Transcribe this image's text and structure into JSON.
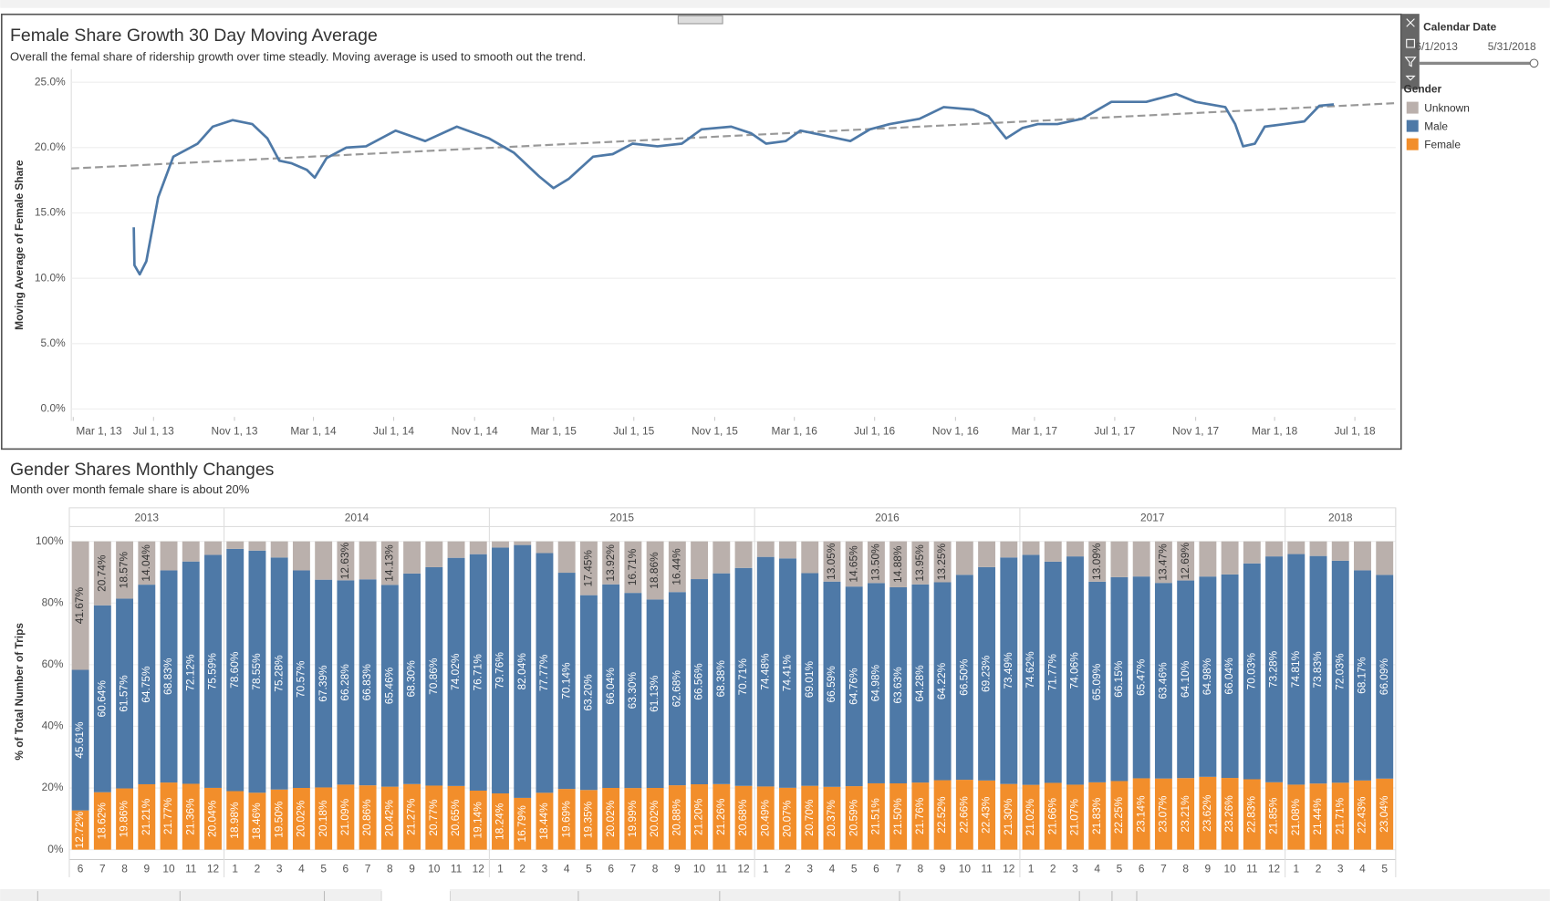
{
  "chart_data": [
    {
      "type": "line",
      "title": "Female Share Growth 30 Day Moving Average",
      "subtitle": "Overall the femal share of ridership growth over time steadly. Moving average is used to smooth out the trend.",
      "y_label": "Moving Average of Female Share",
      "color": "#4e79a7",
      "x": [
        "2013-06-01",
        "2013-06-02",
        "2013-06-10",
        "2013-06-20",
        "2013-07-08",
        "2013-07-31",
        "2013-09-06",
        "2013-09-29",
        "2013-10-29",
        "2013-11-28",
        "2013-12-21",
        "2014-01-08",
        "2014-01-27",
        "2014-02-19",
        "2014-03-03",
        "2014-03-21",
        "2014-04-20",
        "2014-05-20",
        "2014-07-04",
        "2014-08-18",
        "2014-10-05",
        "2014-11-23",
        "2014-12-31",
        "2015-02-07",
        "2015-03-01",
        "2015-03-24",
        "2015-04-30",
        "2015-05-30",
        "2015-06-29",
        "2015-08-06",
        "2015-09-12",
        "2015-10-12",
        "2015-11-26",
        "2015-12-26",
        "2016-01-18",
        "2016-02-17",
        "2016-03-10",
        "2016-04-09",
        "2016-05-25",
        "2016-06-24",
        "2016-07-24",
        "2016-09-07",
        "2016-10-14",
        "2016-11-28",
        "2016-12-21",
        "2017-01-17",
        "2017-02-11",
        "2017-03-06",
        "2017-04-05",
        "2017-05-12",
        "2017-06-26",
        "2017-08-18",
        "2017-10-02",
        "2017-11-01",
        "2017-12-16",
        "2017-12-31",
        "2018-01-12",
        "2018-01-30",
        "2018-02-14",
        "2018-03-16",
        "2018-04-15",
        "2018-05-08",
        "2018-05-30"
      ],
      "values": [
        13.9,
        11.0,
        10.3,
        11.3,
        16.2,
        19.3,
        20.3,
        21.6,
        22.1,
        21.8,
        20.7,
        19.0,
        18.8,
        18.3,
        17.7,
        19.2,
        20.0,
        20.1,
        21.3,
        20.5,
        21.6,
        20.7,
        19.6,
        17.8,
        16.9,
        17.6,
        19.3,
        19.5,
        20.3,
        20.1,
        20.3,
        21.4,
        21.6,
        21.1,
        20.3,
        20.5,
        21.3,
        21.0,
        20.5,
        21.4,
        21.8,
        22.2,
        23.1,
        22.9,
        22.4,
        20.7,
        21.5,
        21.8,
        21.8,
        22.2,
        23.5,
        23.5,
        24.1,
        23.5,
        23.1,
        21.8,
        20.1,
        20.3,
        21.6,
        21.8,
        22.0,
        23.2,
        23.3
      ],
      "trend_line": {
        "x": [
          "2013-02-26",
          "2018-09-01"
        ],
        "values": [
          18.4,
          23.4
        ],
        "color": "#999999"
      },
      "xlim": [
        "2013-02-26",
        "2018-09-01"
      ],
      "xticks": [
        {
          "value": "2013-03-01",
          "label": "Mar 1, 13"
        },
        {
          "value": "2013-07-01",
          "label": "Jul 1, 13"
        },
        {
          "value": "2013-11-01",
          "label": "Nov 1, 13"
        },
        {
          "value": "2014-03-01",
          "label": "Mar 1, 14"
        },
        {
          "value": "2014-07-01",
          "label": "Jul 1, 14"
        },
        {
          "value": "2014-11-01",
          "label": "Nov 1, 14"
        },
        {
          "value": "2015-03-01",
          "label": "Mar 1, 15"
        },
        {
          "value": "2015-07-01",
          "label": "Jul 1, 15"
        },
        {
          "value": "2015-11-01",
          "label": "Nov 1, 15"
        },
        {
          "value": "2016-03-01",
          "label": "Mar 1, 16"
        },
        {
          "value": "2016-07-01",
          "label": "Jul 1, 16"
        },
        {
          "value": "2016-11-01",
          "label": "Nov 1, 16"
        },
        {
          "value": "2017-03-01",
          "label": "Mar 1, 17"
        },
        {
          "value": "2017-07-01",
          "label": "Jul 1, 17"
        },
        {
          "value": "2017-11-01",
          "label": "Nov 1, 17"
        },
        {
          "value": "2018-03-01",
          "label": "Mar 1, 18"
        },
        {
          "value": "2018-07-01",
          "label": "Jul 1, 18"
        }
      ],
      "ylim": [
        0,
        26
      ],
      "yticks": [
        {
          "value": 0,
          "label": "0.0%"
        },
        {
          "value": 5,
          "label": "5.0%"
        },
        {
          "value": 10,
          "label": "10.0%"
        },
        {
          "value": 15,
          "label": "15.0%"
        },
        {
          "value": 20,
          "label": "20.0%"
        },
        {
          "value": 25,
          "label": "25.0%"
        }
      ],
      "grid": true,
      "filter": {
        "title": "Calendar Date",
        "start": "6/1/2013",
        "end": "5/31/2018"
      }
    },
    {
      "type": "bar",
      "stacked": true,
      "title": "Gender Shares Monthly Changes",
      "subtitle": "Month over month female share is about 20%",
      "y_label": "% of Total Number of Trips",
      "year_groups": [
        {
          "name": "2013",
          "categories": [
            "6",
            "7",
            "8",
            "9",
            "10",
            "11",
            "12"
          ]
        },
        {
          "name": "2014",
          "categories": [
            "1",
            "2",
            "3",
            "4",
            "5",
            "6",
            "7",
            "8",
            "9",
            "10",
            "11",
            "12"
          ]
        },
        {
          "name": "2015",
          "categories": [
            "1",
            "2",
            "3",
            "4",
            "5",
            "6",
            "7",
            "8",
            "9",
            "10",
            "11",
            "12"
          ]
        },
        {
          "name": "2016",
          "categories": [
            "1",
            "2",
            "3",
            "4",
            "5",
            "6",
            "7",
            "8",
            "9",
            "10",
            "11",
            "12"
          ]
        },
        {
          "name": "2017",
          "categories": [
            "1",
            "2",
            "3",
            "4",
            "5",
            "6",
            "7",
            "8",
            "9",
            "10",
            "11",
            "12"
          ]
        },
        {
          "name": "2018",
          "categories": [
            "1",
            "2",
            "3",
            "4",
            "5"
          ]
        }
      ],
      "legend": {
        "title": "Gender"
      },
      "series": [
        {
          "name": "Unknown",
          "color": "#bab0ac",
          "label_color": "#333333",
          "values": [
            41.67,
            20.74,
            18.57,
            14.04,
            9.4,
            6.52,
            4.37,
            2.42,
            2.99,
            5.22,
            9.41,
            12.43,
            12.63,
            12.31,
            14.13,
            10.43,
            8.37,
            5.33,
            4.15,
            2.0,
            1.17,
            3.79,
            10.17,
            17.45,
            13.92,
            16.71,
            18.86,
            16.44,
            12.24,
            10.36,
            8.61,
            5.03,
            5.52,
            10.29,
            13.05,
            14.65,
            13.5,
            14.88,
            13.95,
            13.25,
            10.84,
            8.34,
            5.21,
            4.36,
            6.57,
            4.87,
            13.09,
            11.6,
            11.39,
            13.47,
            12.69,
            11.4,
            10.7,
            7.14,
            4.87,
            4.11,
            4.73,
            6.26,
            9.4,
            10.87
          ],
          "value_labels": [
            "41.67%",
            "20.74%",
            "18.57%",
            "14.04%",
            null,
            null,
            null,
            null,
            null,
            null,
            null,
            null,
            "12.63%",
            null,
            "14.13%",
            null,
            null,
            null,
            null,
            null,
            null,
            null,
            null,
            "17.45%",
            "13.92%",
            "16.71%",
            "18.86%",
            "16.44%",
            null,
            null,
            null,
            null,
            null,
            null,
            "13.05%",
            "14.65%",
            "13.50%",
            "14.88%",
            "13.95%",
            "13.25%",
            null,
            null,
            null,
            null,
            null,
            null,
            "13.09%",
            null,
            null,
            "13.47%",
            "12.69%",
            null,
            null,
            null,
            null,
            null,
            null,
            null,
            null,
            null
          ]
        },
        {
          "name": "Male",
          "color": "#4e79a7",
          "label_color": "#ffffff",
          "values": [
            45.61,
            60.64,
            61.57,
            64.75,
            68.83,
            72.12,
            75.59,
            78.6,
            78.55,
            75.28,
            70.57,
            67.39,
            66.28,
            66.83,
            65.46,
            68.3,
            70.86,
            74.02,
            76.71,
            79.76,
            82.04,
            77.77,
            70.14,
            63.2,
            66.04,
            63.3,
            61.13,
            62.68,
            66.56,
            68.38,
            70.71,
            74.48,
            74.41,
            69.01,
            66.59,
            64.76,
            64.98,
            63.63,
            64.28,
            64.22,
            66.5,
            69.23,
            73.49,
            74.62,
            71.77,
            74.06,
            65.09,
            66.15,
            65.47,
            63.46,
            64.1,
            64.98,
            66.04,
            70.03,
            73.28,
            74.81,
            73.83,
            72.03,
            68.17,
            66.09
          ],
          "value_labels": [
            "45.61%",
            "60.64%",
            "61.57%",
            "64.75%",
            "68.83%",
            "72.12%",
            "75.59%",
            "78.60%",
            "78.55%",
            "75.28%",
            "70.57%",
            "67.39%",
            "66.28%",
            "66.83%",
            "65.46%",
            "68.30%",
            "70.86%",
            "74.02%",
            "76.71%",
            "79.76%",
            "82.04%",
            "77.77%",
            "70.14%",
            "63.20%",
            "66.04%",
            "63.30%",
            "61.13%",
            "62.68%",
            "66.56%",
            "68.38%",
            "70.71%",
            "74.48%",
            "74.41%",
            "69.01%",
            "66.59%",
            "64.76%",
            "64.98%",
            "63.63%",
            "64.28%",
            "64.22%",
            "66.50%",
            "69.23%",
            "73.49%",
            "74.62%",
            "71.77%",
            "74.06%",
            "65.09%",
            "66.15%",
            "65.47%",
            "63.46%",
            "64.10%",
            "64.98%",
            "66.04%",
            "70.03%",
            "73.28%",
            "74.81%",
            "73.83%",
            "72.03%",
            "68.17%",
            "66.09%"
          ]
        },
        {
          "name": "Female",
          "color": "#f28e2b",
          "label_color": "#ffffff",
          "values": [
            12.72,
            18.62,
            19.86,
            21.21,
            21.77,
            21.36,
            20.04,
            18.98,
            18.46,
            19.5,
            20.02,
            20.18,
            21.09,
            20.86,
            20.42,
            21.27,
            20.77,
            20.65,
            19.14,
            18.24,
            16.79,
            18.44,
            19.69,
            19.35,
            20.02,
            19.99,
            20.02,
            20.88,
            21.2,
            21.26,
            20.68,
            20.49,
            20.07,
            20.7,
            20.37,
            20.59,
            21.51,
            21.5,
            21.76,
            22.52,
            22.66,
            22.43,
            21.3,
            21.02,
            21.66,
            21.07,
            21.83,
            22.25,
            23.14,
            23.07,
            23.21,
            23.62,
            23.26,
            22.83,
            21.85,
            21.08,
            21.44,
            21.71,
            22.43,
            23.04
          ],
          "value_labels": [
            "12.72%",
            "18.62%",
            "19.86%",
            "21.21%",
            "21.77%",
            "21.36%",
            "20.04%",
            "18.98%",
            "18.46%",
            "19.50%",
            "20.02%",
            "20.18%",
            "21.09%",
            "20.86%",
            "20.42%",
            "21.27%",
            "20.77%",
            "20.65%",
            "19.14%",
            "18.24%",
            "16.79%",
            "18.44%",
            "19.69%",
            "19.35%",
            "20.02%",
            "19.99%",
            "20.02%",
            "20.88%",
            "21.20%",
            "21.26%",
            "20.68%",
            "20.49%",
            "20.07%",
            "20.70%",
            "20.37%",
            "20.59%",
            "21.51%",
            "21.50%",
            "21.76%",
            "22.52%",
            "22.66%",
            "22.43%",
            "21.30%",
            "21.02%",
            "21.66%",
            "21.07%",
            "21.83%",
            "22.25%",
            "23.14%",
            "23.07%",
            "23.21%",
            "23.62%",
            "23.26%",
            "22.83%",
            "21.85%",
            "21.08%",
            "21.44%",
            "21.71%",
            "22.43%",
            "23.04%"
          ]
        }
      ],
      "ylim": [
        0,
        100
      ],
      "yticks": [
        {
          "value": 0,
          "label": "0%"
        },
        {
          "value": 20,
          "label": "20%"
        },
        {
          "value": 40,
          "label": "40%"
        },
        {
          "value": 60,
          "label": "60%"
        },
        {
          "value": 80,
          "label": "80%"
        },
        {
          "value": 100,
          "label": "100%"
        }
      ],
      "grid": true
    }
  ]
}
